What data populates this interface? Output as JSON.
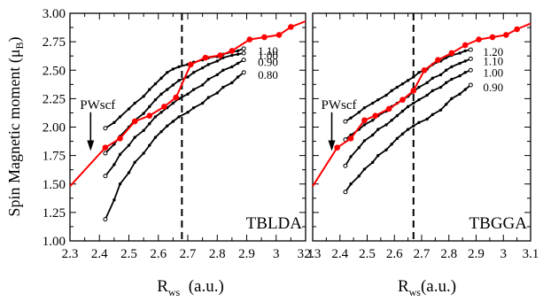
{
  "ylabel_main": "Spin Magnetic moment (μ",
  "ylabel_sub": "B",
  "ylabel_close": ")",
  "chart_data": [
    {
      "type": "line",
      "panel_label": "TBLDA",
      "xlabel_main": "R",
      "xlabel_sub": "ws",
      "xlabel_rest": "  (a.u.)",
      "xlim": [
        2.3,
        3.1
      ],
      "ylim": [
        1.0,
        3.0
      ],
      "xticks": [
        "2.3",
        "2.4",
        "2.5",
        "2.6",
        "2.7",
        "2.8",
        "2.9",
        "3",
        "3.1"
      ],
      "yticks": [
        "1.00",
        "1.25",
        "1.50",
        "1.75",
        "2.00",
        "2.25",
        "2.50",
        "2.75",
        "3.00"
      ],
      "vline_x": 2.68,
      "arrow": {
        "label": "PWscf",
        "x": 2.37,
        "y_from": 2.13,
        "y_to": 1.79
      },
      "red_series": {
        "color": "#ff0000",
        "x": [
          2.3,
          2.42,
          2.47,
          2.52,
          2.57,
          2.62,
          2.66,
          2.71,
          2.76,
          2.81,
          2.85,
          2.91,
          2.96,
          3.01,
          3.05,
          3.1
        ],
        "y": [
          1.48,
          1.82,
          1.9,
          2.05,
          2.1,
          2.18,
          2.26,
          2.55,
          2.61,
          2.63,
          2.67,
          2.77,
          2.79,
          2.81,
          2.88,
          2.93
        ]
      },
      "black_series": [
        {
          "label": "1.10",
          "x": [
            2.42,
            2.45,
            2.47,
            2.5,
            2.52,
            2.55,
            2.57,
            2.59,
            2.61,
            2.63,
            2.65,
            2.67,
            2.7,
            2.72,
            2.75,
            2.77,
            2.8,
            2.82,
            2.85,
            2.87,
            2.89
          ],
          "y": [
            1.99,
            2.04,
            2.09,
            2.16,
            2.21,
            2.27,
            2.33,
            2.38,
            2.43,
            2.48,
            2.51,
            2.53,
            2.55,
            2.57,
            2.59,
            2.61,
            2.62,
            2.64,
            2.66,
            2.67,
            2.69
          ]
        },
        {
          "label": "1.00",
          "x": [
            2.42,
            2.45,
            2.47,
            2.5,
            2.52,
            2.55,
            2.57,
            2.59,
            2.61,
            2.63,
            2.65,
            2.67,
            2.7,
            2.72,
            2.75,
            2.77,
            2.8,
            2.82,
            2.85,
            2.87,
            2.89
          ],
          "y": [
            1.77,
            1.85,
            1.92,
            2.0,
            2.06,
            2.12,
            2.18,
            2.24,
            2.29,
            2.33,
            2.37,
            2.41,
            2.44,
            2.48,
            2.52,
            2.55,
            2.58,
            2.61,
            2.63,
            2.64,
            2.65
          ]
        },
        {
          "label": "0.90",
          "x": [
            2.42,
            2.45,
            2.47,
            2.5,
            2.52,
            2.55,
            2.57,
            2.59,
            2.61,
            2.63,
            2.65,
            2.67,
            2.7,
            2.72,
            2.75,
            2.77,
            2.8,
            2.82,
            2.85,
            2.87,
            2.89
          ],
          "y": [
            1.57,
            1.67,
            1.76,
            1.84,
            1.91,
            1.97,
            2.03,
            2.09,
            2.13,
            2.17,
            2.21,
            2.25,
            2.29,
            2.33,
            2.37,
            2.42,
            2.46,
            2.5,
            2.53,
            2.56,
            2.59
          ]
        },
        {
          "label": "0.80",
          "x": [
            2.42,
            2.45,
            2.47,
            2.5,
            2.52,
            2.55,
            2.57,
            2.59,
            2.61,
            2.63,
            2.65,
            2.67,
            2.7,
            2.72,
            2.75,
            2.77,
            2.8,
            2.82,
            2.85,
            2.87,
            2.89
          ],
          "y": [
            1.19,
            1.36,
            1.5,
            1.6,
            1.69,
            1.77,
            1.84,
            1.91,
            1.96,
            2.01,
            2.05,
            2.09,
            2.13,
            2.17,
            2.21,
            2.26,
            2.3,
            2.35,
            2.39,
            2.44,
            2.48
          ]
        }
      ]
    },
    {
      "type": "line",
      "panel_label": "TBGGA",
      "xlabel_main": "R",
      "xlabel_sub": "ws",
      "xlabel_rest": "(a.u.)",
      "xlim": [
        2.3,
        3.1
      ],
      "ylim": [
        1.0,
        3.0
      ],
      "xticks": [
        "2.3",
        "2.4",
        "2.5",
        "2.6",
        "2.7",
        "2.8",
        "2.9",
        "3",
        "3.1"
      ],
      "vline_x": 2.67,
      "arrow": {
        "label": "PWscf",
        "x": 2.37,
        "y_from": 2.13,
        "y_to": 1.79
      },
      "red_series": {
        "color": "#ff0000",
        "x": [
          2.3,
          2.39,
          2.44,
          2.49,
          2.53,
          2.58,
          2.63,
          2.67,
          2.71,
          2.76,
          2.81,
          2.86,
          2.91,
          2.96,
          3.01,
          3.05,
          3.1
        ],
        "y": [
          1.48,
          1.82,
          1.9,
          2.06,
          2.1,
          2.16,
          2.24,
          2.32,
          2.5,
          2.59,
          2.65,
          2.72,
          2.77,
          2.79,
          2.81,
          2.86,
          2.91
        ]
      },
      "black_series": [
        {
          "label": "1.20",
          "x": [
            2.42,
            2.44,
            2.47,
            2.49,
            2.52,
            2.54,
            2.57,
            2.59,
            2.61,
            2.63,
            2.65,
            2.67,
            2.69,
            2.72,
            2.74,
            2.77,
            2.79,
            2.81,
            2.84,
            2.86,
            2.88
          ],
          "y": [
            2.05,
            2.08,
            2.13,
            2.17,
            2.21,
            2.24,
            2.28,
            2.32,
            2.35,
            2.38,
            2.41,
            2.44,
            2.48,
            2.51,
            2.55,
            2.58,
            2.61,
            2.63,
            2.65,
            2.67,
            2.68
          ]
        },
        {
          "label": "1.10",
          "x": [
            2.42,
            2.44,
            2.47,
            2.49,
            2.52,
            2.54,
            2.57,
            2.59,
            2.61,
            2.63,
            2.65,
            2.67,
            2.69,
            2.72,
            2.74,
            2.77,
            2.79,
            2.81,
            2.84,
            2.86,
            2.88
          ],
          "y": [
            1.89,
            1.93,
            1.98,
            2.02,
            2.06,
            2.1,
            2.14,
            2.18,
            2.21,
            2.24,
            2.27,
            2.31,
            2.35,
            2.39,
            2.43,
            2.46,
            2.5,
            2.53,
            2.56,
            2.58,
            2.6
          ]
        },
        {
          "label": "1.00",
          "x": [
            2.42,
            2.44,
            2.47,
            2.49,
            2.52,
            2.54,
            2.57,
            2.59,
            2.61,
            2.63,
            2.65,
            2.67,
            2.69,
            2.72,
            2.74,
            2.77,
            2.79,
            2.81,
            2.84,
            2.86,
            2.88
          ],
          "y": [
            1.66,
            1.74,
            1.82,
            1.88,
            1.93,
            1.98,
            2.02,
            2.06,
            2.1,
            2.14,
            2.18,
            2.21,
            2.24,
            2.28,
            2.32,
            2.35,
            2.39,
            2.42,
            2.45,
            2.48,
            2.5
          ]
        },
        {
          "label": "0.90",
          "x": [
            2.42,
            2.44,
            2.47,
            2.49,
            2.52,
            2.54,
            2.57,
            2.59,
            2.61,
            2.63,
            2.65,
            2.67,
            2.69,
            2.72,
            2.74,
            2.77,
            2.79,
            2.81,
            2.84,
            2.86,
            2.88
          ],
          "y": [
            1.43,
            1.5,
            1.57,
            1.63,
            1.69,
            1.75,
            1.8,
            1.85,
            1.9,
            1.94,
            1.98,
            2.01,
            2.04,
            2.07,
            2.11,
            2.15,
            2.2,
            2.25,
            2.29,
            2.33,
            2.37
          ]
        }
      ]
    }
  ]
}
